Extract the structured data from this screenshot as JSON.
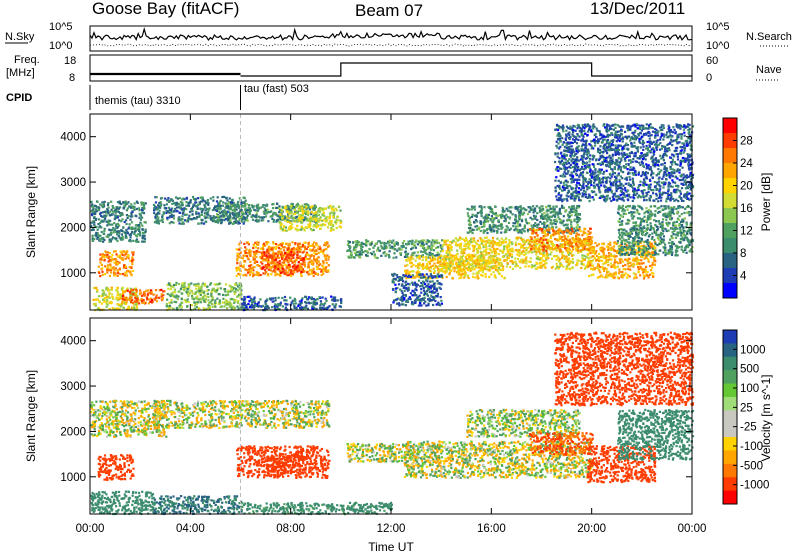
{
  "header": {
    "station": "Goose Bay (fitACF)",
    "beam": "Beam 07",
    "date": "13/Dec/2011"
  },
  "status_panels": {
    "nsky_label": "N.Sky",
    "nsearch_label": "N.Search",
    "noise_ticks": [
      "10^5",
      "10^0"
    ],
    "freq_label_1": "Freq.",
    "freq_label_2": "[MHz]",
    "freq_ticks": [
      "18",
      "8"
    ],
    "nave_label": "Nave",
    "nave_ticks": [
      "60",
      "0"
    ],
    "cpid_label": "CPID",
    "cpid_segments": [
      {
        "label": "themis (tau) 3310",
        "start_hour": 0.0,
        "end_hour": 6.0
      },
      {
        "label": "tau (fast) 503",
        "start_hour": 6.0,
        "end_hour": 24.0
      }
    ],
    "nave_high_interval_hours": [
      10.0,
      20.0
    ]
  },
  "chart_data": [
    {
      "type": "heatmap",
      "name": "power",
      "ylabel": "Slant Range [km]",
      "xlabel": "Time UT",
      "x_ticks": [
        "00:00",
        "04:00",
        "08:00",
        "12:00",
        "16:00",
        "20:00",
        "00:00"
      ],
      "x_tick_hours": [
        0,
        4,
        8,
        12,
        16,
        20,
        24
      ],
      "xlim": [
        0,
        24
      ],
      "ylim": [
        180,
        4500
      ],
      "y_ticks": [
        1000,
        2000,
        3000,
        4000
      ],
      "colorbar_label": "Power [dB]",
      "colorbar_ticks": [
        "28",
        "24",
        "20",
        "16",
        "12",
        "8",
        "4"
      ],
      "colorbar_colors": [
        "#ff0000",
        "#ff3c00",
        "#ff7800",
        "#ffa500",
        "#ffd200",
        "#d2dc32",
        "#8cc850",
        "#50a060",
        "#3c8c6e",
        "#286482",
        "#1e3cb4",
        "#0000ff"
      ],
      "echo_regions": [
        {
          "t0": 0.1,
          "t1": 1.9,
          "r0": 200,
          "r1": 700,
          "value": 18
        },
        {
          "t0": 1.2,
          "t1": 3.0,
          "r0": 350,
          "r1": 650,
          "value": 26
        },
        {
          "t0": 0.3,
          "t1": 1.7,
          "r0": 950,
          "r1": 1500,
          "value": 24
        },
        {
          "t0": 0.0,
          "t1": 2.2,
          "r0": 1700,
          "r1": 2600,
          "value": 9
        },
        {
          "t0": 2.5,
          "t1": 6.2,
          "r0": 2100,
          "r1": 2700,
          "value": 8
        },
        {
          "t0": 5.0,
          "t1": 9.0,
          "r0": 2150,
          "r1": 2550,
          "value": 10
        },
        {
          "t0": 7.5,
          "t1": 10.0,
          "r0": 1950,
          "r1": 2500,
          "value": 17
        },
        {
          "t0": 5.8,
          "t1": 9.5,
          "r0": 950,
          "r1": 1700,
          "value": 24
        },
        {
          "t0": 6.8,
          "t1": 8.5,
          "r0": 1000,
          "r1": 1500,
          "value": 27
        },
        {
          "t0": 3.0,
          "t1": 6.0,
          "r0": 200,
          "r1": 800,
          "value": 14
        },
        {
          "t0": 6.0,
          "t1": 10.0,
          "r0": 200,
          "r1": 500,
          "value": 6
        },
        {
          "t0": 10.2,
          "t1": 14.0,
          "r0": 1350,
          "r1": 1750,
          "value": 11
        },
        {
          "t0": 12.5,
          "t1": 16.5,
          "r0": 900,
          "r1": 1400,
          "value": 20
        },
        {
          "t0": 14.0,
          "t1": 20.0,
          "r0": 1100,
          "r1": 1800,
          "value": 19
        },
        {
          "t0": 15.0,
          "t1": 19.5,
          "r0": 1900,
          "r1": 2500,
          "value": 10
        },
        {
          "t0": 17.5,
          "t1": 20.0,
          "r0": 1500,
          "r1": 2000,
          "value": 24
        },
        {
          "t0": 19.8,
          "t1": 22.5,
          "r0": 900,
          "r1": 1700,
          "value": 22
        },
        {
          "t0": 21.0,
          "t1": 24.0,
          "r0": 1400,
          "r1": 2500,
          "value": 10
        },
        {
          "t0": 12.0,
          "t1": 14.0,
          "r0": 300,
          "r1": 1000,
          "value": 6
        },
        {
          "t0": 18.5,
          "t1": 24.0,
          "r0": 2600,
          "r1": 4300,
          "value": 6
        }
      ]
    },
    {
      "type": "heatmap",
      "name": "velocity",
      "ylabel": "Slant Range [km]",
      "xlabel": "Time UT",
      "x_ticks": [
        "00:00",
        "04:00",
        "08:00",
        "12:00",
        "16:00",
        "20:00",
        "00:00"
      ],
      "x_tick_hours": [
        0,
        4,
        8,
        12,
        16,
        20,
        24
      ],
      "xlim": [
        0,
        24
      ],
      "ylim": [
        180,
        4500
      ],
      "y_ticks": [
        1000,
        2000,
        3000,
        4000
      ],
      "colorbar_label": "Velocity [m s^-1]",
      "colorbar_ticks": [
        "1000",
        "500",
        "100",
        "25",
        "-25",
        "-100",
        "-500",
        "-1000"
      ],
      "colorbar_colors": [
        "#1e3cb4",
        "#286482",
        "#3c8c6e",
        "#50a060",
        "#64c832",
        "#a0dc78",
        "#c8c8c0",
        "#c8c8c0",
        "#ffd200",
        "#ffa500",
        "#ff7800",
        "#ff3c00",
        "#ff0000"
      ],
      "echo_regions": [
        {
          "t0": 0.0,
          "t1": 2.5,
          "r0": 200,
          "r1": 700,
          "value": 80
        },
        {
          "t0": 2.5,
          "t1": 6.0,
          "r0": 200,
          "r1": 600,
          "value": 120
        },
        {
          "t0": 0.3,
          "t1": 1.7,
          "r0": 950,
          "r1": 1500,
          "value": -200
        },
        {
          "t0": 0.0,
          "t1": 3.0,
          "r0": 1900,
          "r1": 2700,
          "value": 0
        },
        {
          "t0": 2.5,
          "t1": 9.5,
          "r0": 2100,
          "r1": 2700,
          "value": 0
        },
        {
          "t0": 5.8,
          "t1": 9.5,
          "r0": 1000,
          "r1": 1700,
          "value": -300
        },
        {
          "t0": 7.0,
          "t1": 8.5,
          "r0": 1100,
          "r1": 1500,
          "value": -150
        },
        {
          "t0": 10.2,
          "t1": 14.0,
          "r0": 1350,
          "r1": 1750,
          "value": 0
        },
        {
          "t0": 12.5,
          "t1": 20.0,
          "r0": 1000,
          "r1": 1800,
          "value": 0
        },
        {
          "t0": 15.0,
          "t1": 19.5,
          "r0": 1900,
          "r1": 2500,
          "value": 10
        },
        {
          "t0": 17.5,
          "t1": 20.0,
          "r0": 1500,
          "r1": 2000,
          "value": -120
        },
        {
          "t0": 19.8,
          "t1": 22.5,
          "r0": 900,
          "r1": 1700,
          "value": -250
        },
        {
          "t0": 21.0,
          "t1": 24.0,
          "r0": 1400,
          "r1": 2500,
          "value": 80
        },
        {
          "t0": 18.5,
          "t1": 24.0,
          "r0": 2600,
          "r1": 4200,
          "value": -150
        },
        {
          "t0": 6.0,
          "t1": 12.0,
          "r0": 200,
          "r1": 450,
          "value": 60
        }
      ]
    }
  ]
}
